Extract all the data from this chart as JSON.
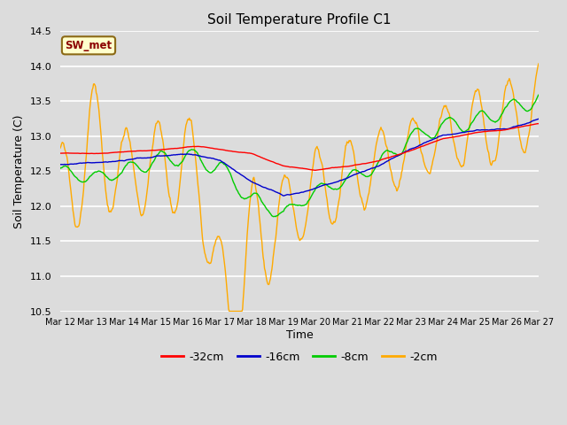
{
  "title": "Soil Temperature Profile C1",
  "xlabel": "Time",
  "ylabel": "Soil Temperature (C)",
  "ylim": [
    10.5,
    14.5
  ],
  "xlim": [
    0,
    360
  ],
  "bg_color": "#dcdcdc",
  "plot_bg_color": "#dcdcdc",
  "grid_color": "#ffffff",
  "annotation_label": "SW_met",
  "annotation_bg": "#ffffcc",
  "annotation_border": "#8B6914",
  "annotation_text_color": "#8B0000",
  "legend_entries": [
    "-32cm",
    "-16cm",
    "-8cm",
    "-2cm"
  ],
  "legend_colors": [
    "#ff0000",
    "#0000cc",
    "#00cc00",
    "#ffaa00"
  ],
  "line_width": 1.0,
  "tick_labels": [
    "Mar 12",
    "Mar 13",
    "Mar 14",
    "Mar 15",
    "Mar 16",
    "Mar 17",
    "Mar 18",
    "Mar 19",
    "Mar 20",
    "Mar 21",
    "Mar 22",
    "Mar 23",
    "Mar 24",
    "Mar 25",
    "Mar 26",
    "Mar 27"
  ],
  "tick_positions": [
    0,
    24,
    48,
    72,
    96,
    120,
    144,
    168,
    192,
    216,
    240,
    264,
    288,
    312,
    336,
    360
  ],
  "yticks": [
    10.5,
    11.0,
    11.5,
    12.0,
    12.5,
    13.0,
    13.5,
    14.0,
    14.5
  ]
}
